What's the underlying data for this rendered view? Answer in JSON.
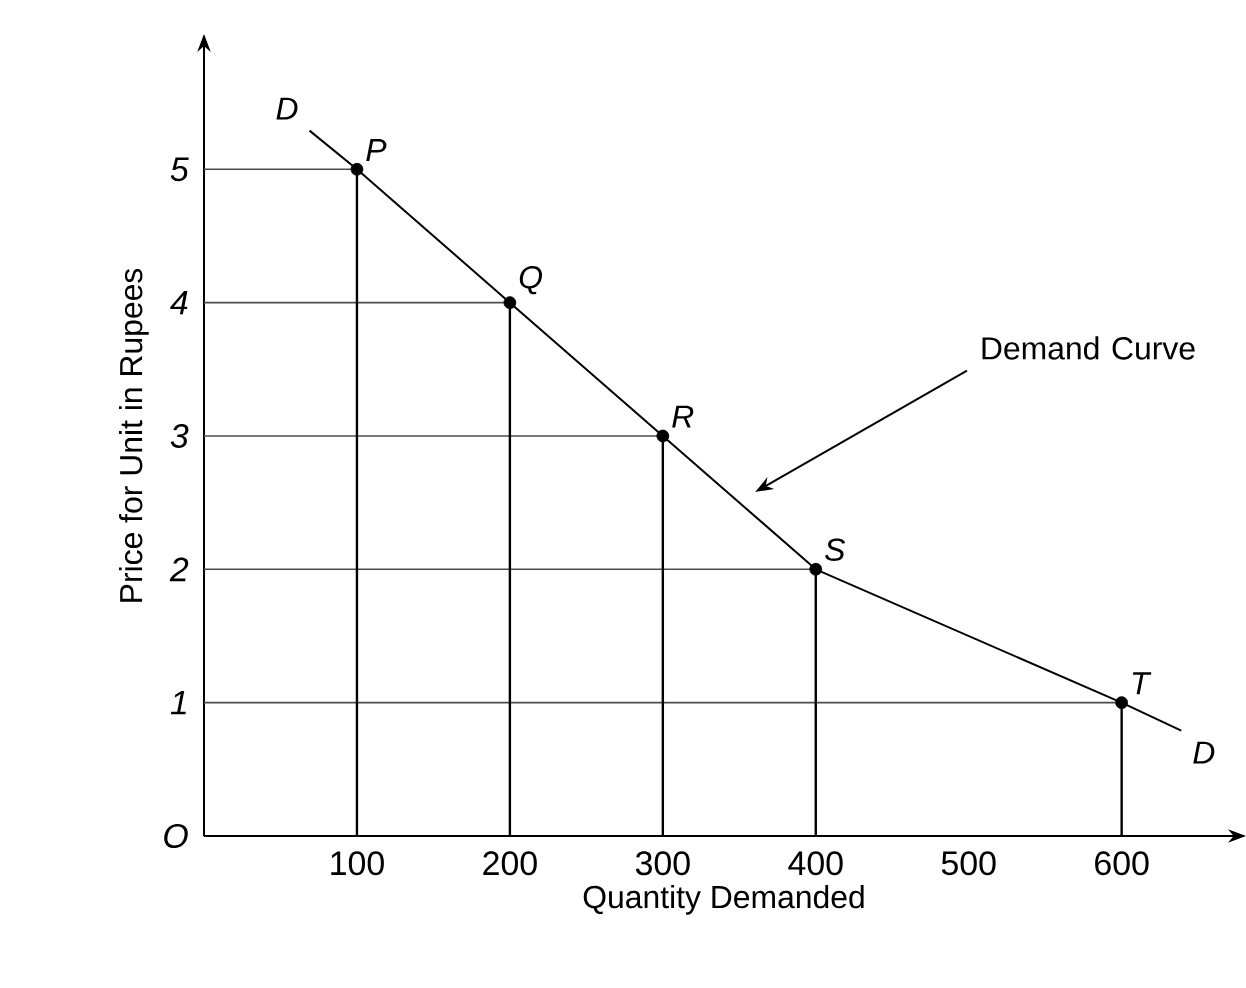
{
  "chart_data": {
    "type": "line",
    "xlabel": "Quantity Demanded",
    "ylabel": "Price for Unit in Rupees",
    "series": [
      {
        "name": "D",
        "color": "#000000",
        "x": [
          69,
          100,
          200,
          300,
          400,
          600,
          639
        ],
        "values": [
          5.29,
          5,
          4,
          3,
          2,
          1,
          0.79
        ]
      }
    ],
    "xlim": [
      0,
      680
    ],
    "ylim": [
      0,
      6
    ],
    "xticks": [
      100,
      200,
      300,
      400,
      500,
      600
    ],
    "yticks": [
      {
        "value": 0,
        "label": "O"
      },
      1,
      2,
      3,
      4,
      5
    ],
    "marker": "circle",
    "ref_lines": [
      {
        "axis": "y",
        "value": 5
      },
      {
        "axis": "y",
        "value": 4
      },
      {
        "axis": "y",
        "value": 3
      },
      {
        "axis": "y",
        "value": 2
      },
      {
        "axis": "y",
        "value": 1
      },
      {
        "axis": "x",
        "value": 100
      },
      {
        "axis": "x",
        "value": 200
      },
      {
        "axis": "x",
        "value": 300
      },
      {
        "axis": "x",
        "value": 400
      },
      {
        "axis": "x",
        "value": 600
      }
    ],
    "annotations": [
      {
        "text": "P",
        "x": 100,
        "y": 5
      },
      {
        "text": "Q",
        "x": 200,
        "y": 4
      },
      {
        "text": "R",
        "x": 300,
        "y": 3
      },
      {
        "text": "S",
        "x": 400,
        "y": 2
      },
      {
        "text": "T",
        "x": 600,
        "y": 1
      },
      "Demand Curve"
    ]
  }
}
